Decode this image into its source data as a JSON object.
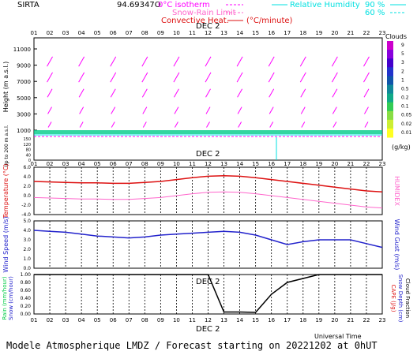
{
  "header": {
    "site": "SIRTA",
    "coords": "94.69347O",
    "legend_isotherm": "0°C isotherm",
    "legend_snow": "Snow-Rain Limit",
    "legend_conv": "Convective Heat.",
    "legend_conv_unit": "(°C/minute)",
    "legend_rh": "Relative Humidity",
    "rh_90": "90 %",
    "rh_60": "60 %"
  },
  "hours": [
    "01",
    "02",
    "03",
    "04",
    "05",
    "06",
    "07",
    "08",
    "09",
    "10",
    "11",
    "12",
    "13",
    "14",
    "15",
    "16",
    "17",
    "18",
    "19",
    "20",
    "21",
    "22",
    "23"
  ],
  "date_label": "DEC  2",
  "footer": "Modele Atmospherique LMDZ / Forecast starting on 20221202 at 0hUT",
  "universal_time": "Universal Time",
  "colors": {
    "magenta": "#ff00ff",
    "red": "#dd1111",
    "pink": "#ff66cc",
    "blue": "#2222cc",
    "cyan": "#00e0e0",
    "green": "#00cc44"
  },
  "chart_data": [
    {
      "type": "vector-field",
      "ylabel": "Height (m a.s.l.)",
      "ylabel_low": "Up to 200 m a.s.l.",
      "yticks_upper": [
        "11000",
        "9000",
        "7000",
        "5000",
        "3000",
        "1000"
      ],
      "yticks_upper_minor": [
        "10000",
        "8000",
        "6000",
        "4000",
        "2000"
      ],
      "yticks_lower": [
        "150",
        "140",
        "120",
        "100",
        "80",
        "60",
        "40",
        "20",
        "0"
      ],
      "clouds_title": "Clouds",
      "clouds_levels": [
        "9",
        "5",
        "3",
        "2",
        "1",
        "0.5",
        "0.2",
        "0.1",
        "0.05",
        "0.02",
        "0.01"
      ],
      "clouds_colors": [
        "#cc00cc",
        "#8800dd",
        "#4400cc",
        "#2233cc",
        "#1155aa",
        "#118899",
        "#11aa88",
        "#33cc55",
        "#88dd44",
        "#ccee33",
        "#ffff22"
      ],
      "clouds_unit": "(g/kg)"
    },
    {
      "type": "line",
      "ylabel_left": "Temperature (°C)",
      "ylabel_right": "HUMIDEX",
      "yticks": [
        "6.0",
        "4.0",
        "2.0",
        "0.0",
        "-2.0",
        "-4.0"
      ],
      "ylim": [
        -4,
        6
      ],
      "series": [
        {
          "name": "Temperature",
          "values": [
            3.0,
            2.9,
            2.8,
            2.7,
            2.7,
            2.6,
            2.6,
            2.8,
            3.0,
            3.4,
            3.8,
            4.1,
            4.2,
            4.1,
            3.8,
            3.4,
            3.0,
            2.6,
            2.2,
            1.8,
            1.4,
            1.0,
            0.8
          ]
        },
        {
          "name": "HUMIDEX",
          "values": [
            -0.4,
            -0.5,
            -0.6,
            -0.7,
            -0.7,
            -0.8,
            -0.8,
            -0.6,
            -0.4,
            0.0,
            0.4,
            0.7,
            0.8,
            0.7,
            0.4,
            0.0,
            -0.4,
            -0.8,
            -1.2,
            -1.6,
            -2.0,
            -2.4,
            -2.6
          ]
        }
      ]
    },
    {
      "type": "line",
      "ylabel_left": "Wind Speed (m/s)",
      "ylabel_right": "Wind Gust (m/s)",
      "yticks": [
        "5.0",
        "4.0",
        "3.0",
        "2.0",
        "1.0",
        "0.0"
      ],
      "ylim": [
        0,
        5
      ],
      "series": [
        {
          "name": "Wind Speed",
          "values": [
            4.0,
            3.9,
            3.8,
            3.6,
            3.4,
            3.3,
            3.2,
            3.3,
            3.5,
            3.6,
            3.7,
            3.8,
            3.9,
            3.8,
            3.5,
            3.0,
            2.5,
            2.8,
            3.0,
            3.0,
            3.0,
            2.6,
            2.2
          ]
        }
      ]
    },
    {
      "type": "line",
      "ylabel_left": "Rain (mm/hour)",
      "ylabel_left2": "Snow (cm/hour)",
      "ylabel_right": "CAPE (J/g)",
      "ylabel_right2": "Snow Depth (cm)",
      "ylabel_right3": "Cloud Fraction",
      "yticks": [
        "1.00",
        "0.80",
        "0.60",
        "0.40",
        "0.20",
        "0.00"
      ],
      "ylim": [
        0,
        1
      ],
      "series": [
        {
          "name": "Cloud Fraction",
          "values": [
            1.0,
            1.0,
            1.0,
            1.0,
            1.0,
            1.0,
            1.0,
            1.0,
            1.0,
            1.0,
            1.0,
            1.0,
            0.05,
            0.05,
            0.04,
            0.5,
            0.8,
            0.9,
            1.0,
            1.0,
            1.0,
            1.0,
            1.0
          ]
        }
      ]
    }
  ]
}
